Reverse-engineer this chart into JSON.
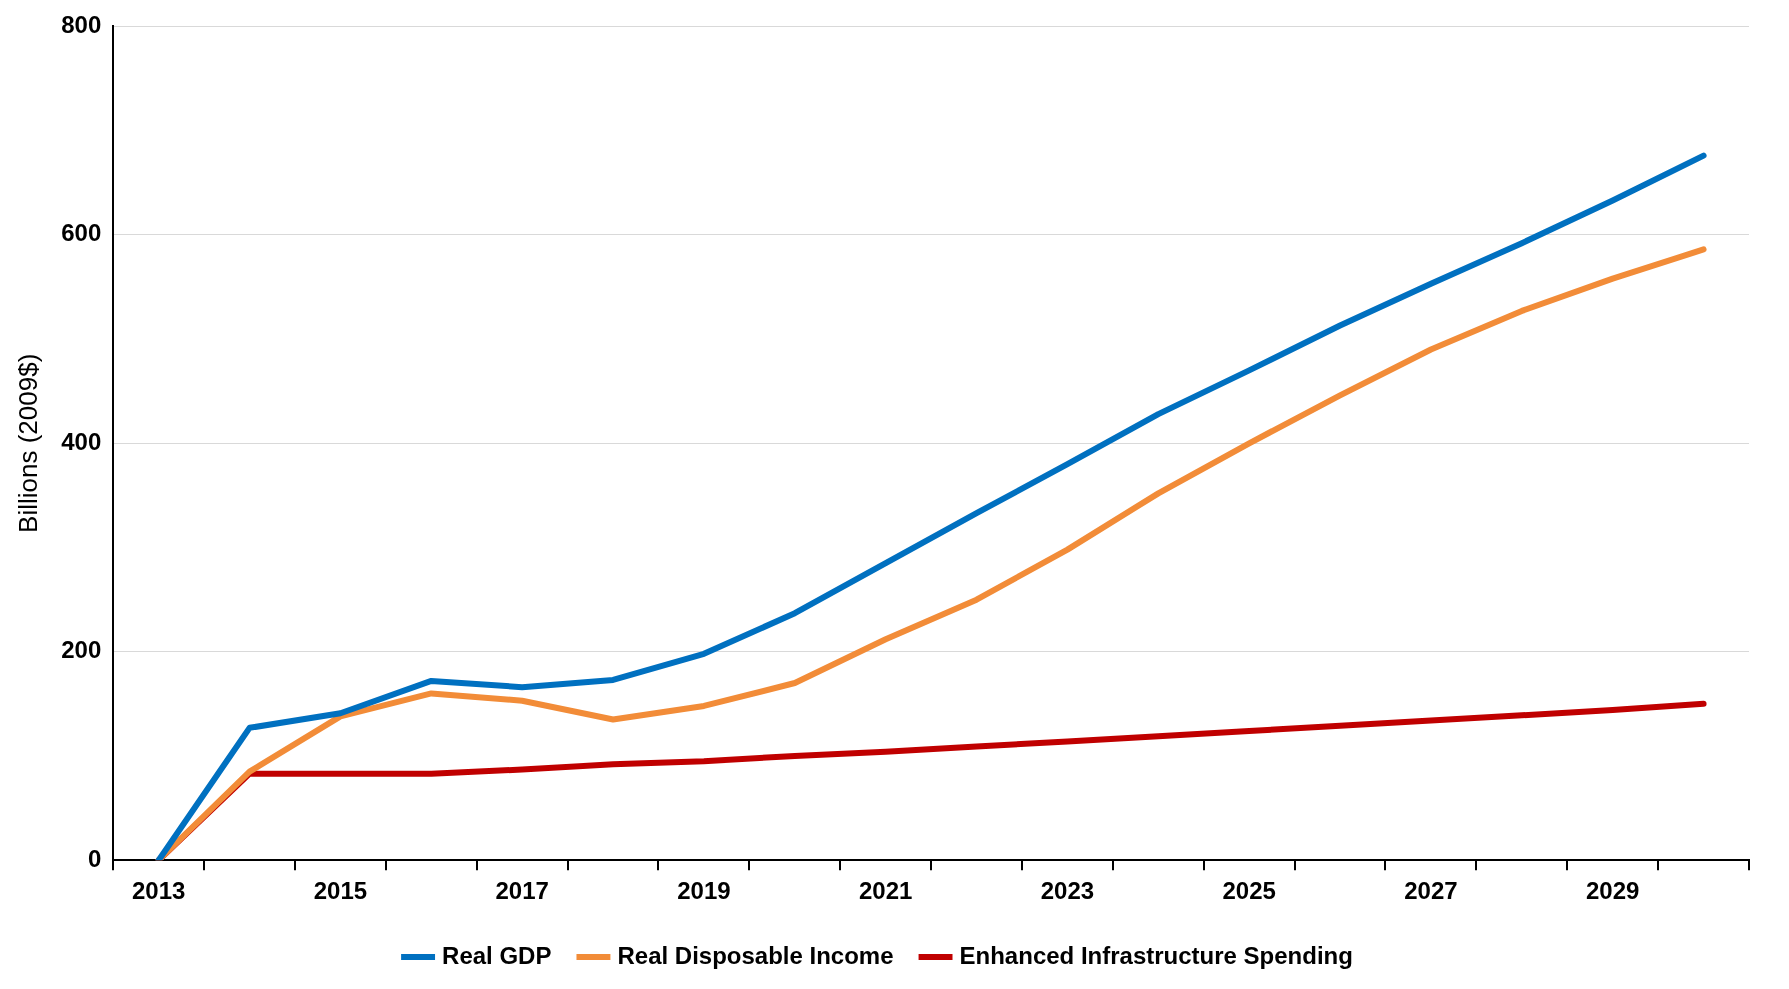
{
  "chart_data": {
    "type": "line",
    "ylabel": "Billions (2009$)",
    "categories": [
      "2013",
      null,
      "2015",
      null,
      "2017",
      null,
      "2019",
      null,
      "2021",
      null,
      "2023",
      null,
      "2025",
      null,
      "2027",
      null,
      "2029",
      null
    ],
    "series": [
      {
        "name": "Real GDP",
        "color": "#0070c0",
        "values": [
          0,
          127,
          141,
          172,
          166,
          173,
          198,
          237,
          285,
          333,
          380,
          428,
          470,
          513,
          553,
          592,
          633,
          676
        ]
      },
      {
        "name": "Real Disposable Income",
        "color": "#f28c38",
        "values": [
          0,
          85,
          138,
          160,
          153,
          135,
          148,
          170,
          212,
          250,
          298,
          352,
          400,
          446,
          490,
          527,
          558,
          586
        ]
      },
      {
        "name": "Enhanced Infrastructure Spending",
        "color": "#c00000",
        "values": [
          0,
          83,
          83,
          83,
          87,
          92,
          95,
          100,
          104,
          109,
          114,
          119,
          124,
          129,
          134,
          139,
          144,
          150
        ]
      }
    ],
    "ylim": [
      0,
      800
    ],
    "yticks": [
      0,
      200,
      400,
      600,
      800
    ],
    "grid": "y",
    "legend": "bottom",
    "marker": "none",
    "line_style": "solid"
  }
}
